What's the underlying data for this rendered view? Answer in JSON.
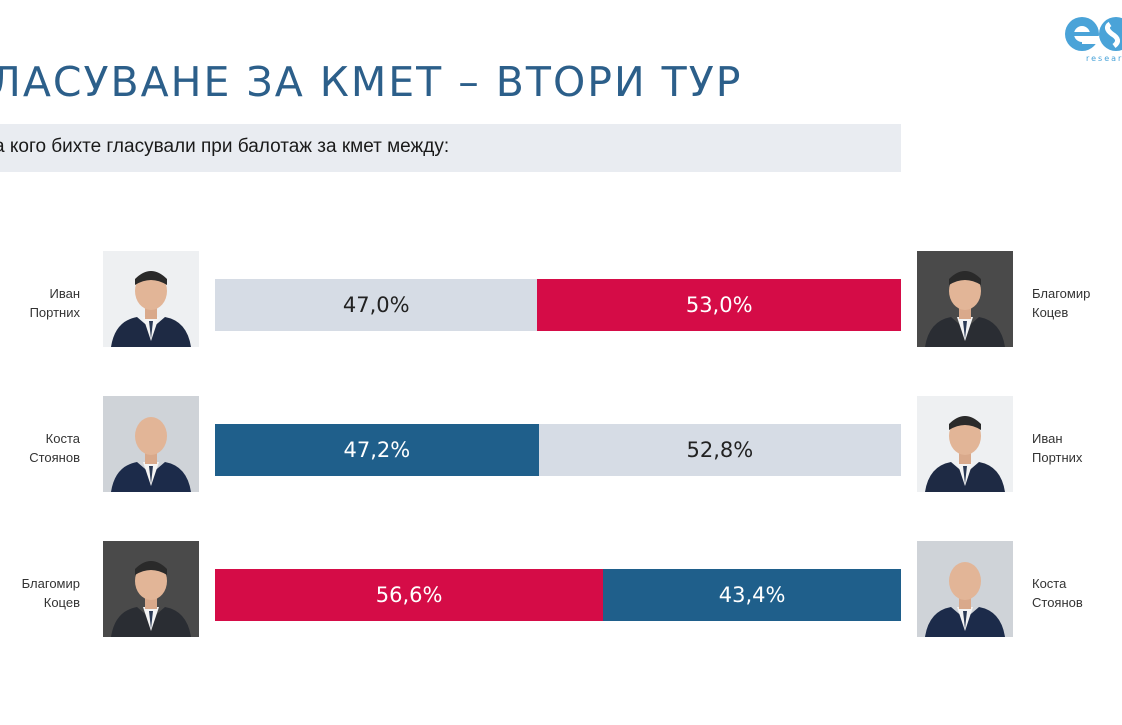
{
  "header": {
    "title": "ЛАСУВАНЕ ЗА КМЕТ – ВТОРИ ТУР",
    "question": "а кого бихте гласували при балотаж за кмет между:",
    "logo_text": "es",
    "logo_sub": "researc"
  },
  "colors": {
    "grey": "#d6dce5",
    "red": "#d50c47",
    "blue": "#1f5f8b",
    "title": "#2c5f8a"
  },
  "chart_data": {
    "type": "bar",
    "stacked": true,
    "unit": "%",
    "rows": [
      {
        "left_name": [
          "Иван",
          "Портних"
        ],
        "right_name": [
          "Благомир",
          "Коцев"
        ],
        "segments": [
          {
            "value": 47.0,
            "label": "47,0%",
            "color": "grey",
            "text_color": "#222222"
          },
          {
            "value": 53.0,
            "label": "53,0%",
            "color": "red",
            "text_color": "#ffffff"
          }
        ]
      },
      {
        "left_name": [
          "Коста",
          "Стоянов"
        ],
        "right_name": [
          "Иван",
          "Портних"
        ],
        "segments": [
          {
            "value": 47.2,
            "label": "47,2%",
            "color": "blue",
            "text_color": "#ffffff"
          },
          {
            "value": 52.8,
            "label": "52,8%",
            "color": "grey",
            "text_color": "#222222"
          }
        ]
      },
      {
        "left_name": [
          "Благомир",
          "Коцев"
        ],
        "right_name": [
          "Коста",
          "Стоянов"
        ],
        "segments": [
          {
            "value": 56.6,
            "label": "56,6%",
            "color": "red",
            "text_color": "#ffffff"
          },
          {
            "value": 43.4,
            "label": "43,4%",
            "color": "blue",
            "text_color": "#ffffff"
          }
        ]
      }
    ]
  }
}
